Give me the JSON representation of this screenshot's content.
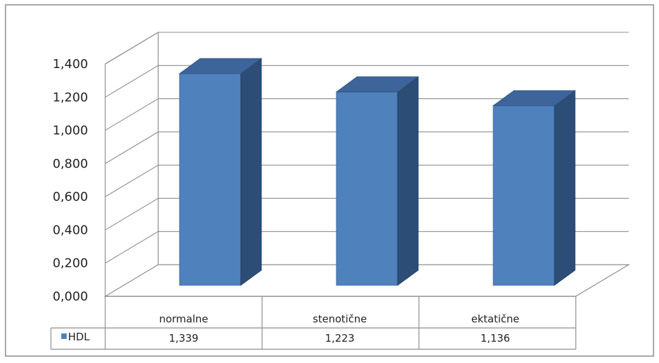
{
  "chart_data": {
    "type": "bar",
    "categories": [
      "normalne",
      "stenotične",
      "ektatične"
    ],
    "series": [
      {
        "name": "HDL",
        "values": [
          1.339,
          1.223,
          1.136
        ],
        "color": "#4f81bd"
      }
    ],
    "ylim": [
      0,
      1.4
    ],
    "yticks": [
      "0,000",
      "0,200",
      "0,400",
      "0,600",
      "0,800",
      "1,000",
      "1,200",
      "1,400"
    ],
    "table": {
      "categories": [
        "normalne",
        "stenotične",
        "ektatične"
      ],
      "rows": [
        {
          "label": "HDL",
          "values": [
            "1,339",
            "1,223",
            "1,136"
          ]
        }
      ]
    },
    "grid": true,
    "style": "3d-column",
    "data_table": true
  }
}
